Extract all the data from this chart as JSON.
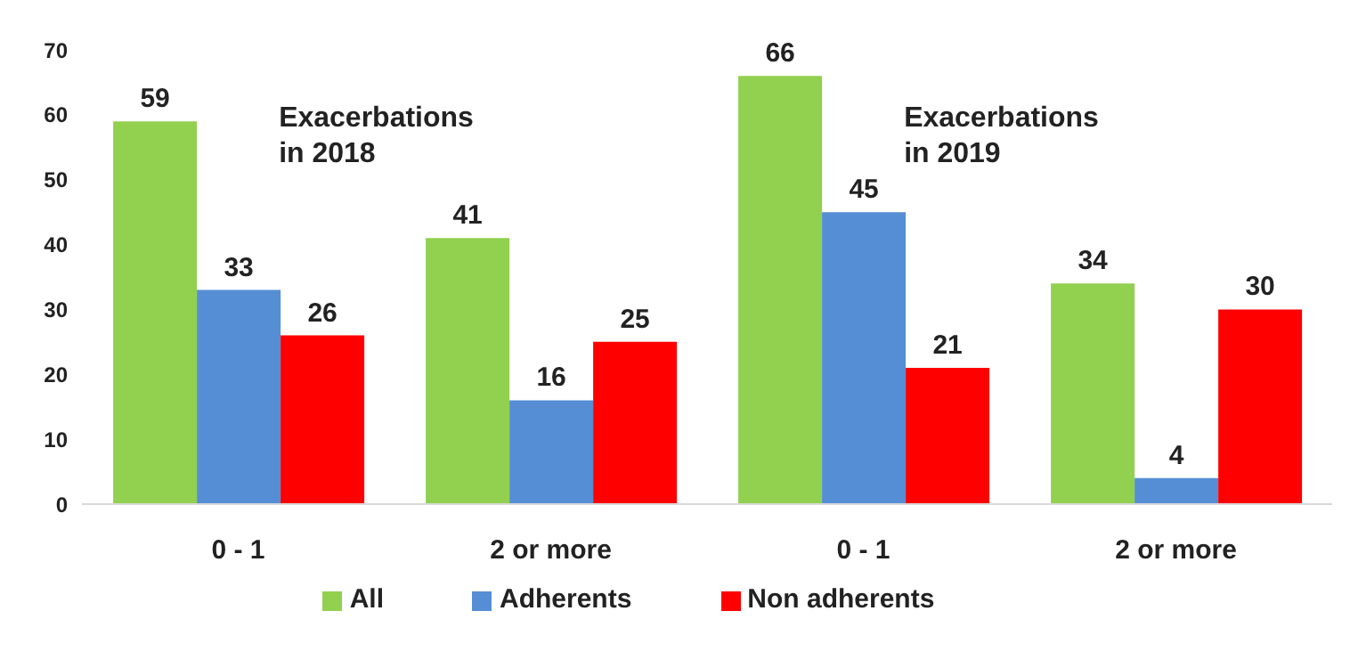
{
  "chart_data": {
    "type": "bar",
    "categories": [
      "0 - 1",
      "2 or more",
      "0 - 1",
      "2 or more"
    ],
    "series": [
      {
        "name": "All",
        "color": "#92d050",
        "values": [
          59,
          41,
          66,
          34
        ]
      },
      {
        "name": "Adherents",
        "color": "#558ed5",
        "values": [
          33,
          16,
          45,
          4
        ]
      },
      {
        "name": "Non adherents",
        "color": "#ff0000",
        "values": [
          26,
          25,
          21,
          30
        ]
      }
    ],
    "ylim": [
      0,
      70
    ],
    "yticks": [
      0,
      10,
      20,
      30,
      40,
      50,
      60,
      70
    ],
    "grid": false,
    "legend": "bottom",
    "data_labels": true,
    "annotations": [
      "Exacerbations in 2018",
      "Exacerbations in 2019"
    ]
  }
}
